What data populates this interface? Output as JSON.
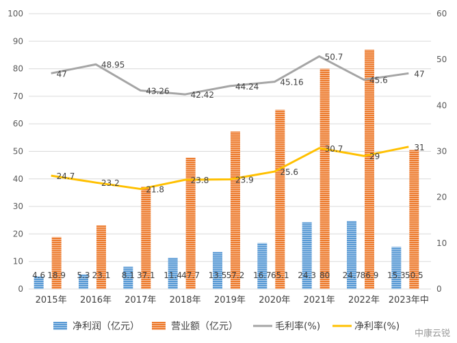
{
  "chart_data": {
    "type": "bar",
    "categories": [
      "2015年",
      "2016年",
      "2017年",
      "2018年",
      "2019年",
      "2020年",
      "2021年",
      "2022年",
      "2023年中"
    ],
    "series": [
      {
        "name": "净利润（亿元）",
        "kind": "bar",
        "axis": "left",
        "color": "#5B9BD5",
        "values": [
          4.6,
          5.3,
          8.1,
          11.4,
          13.5,
          16.7,
          24.3,
          24.7,
          15.3
        ],
        "labels": [
          "4.6",
          "5.3",
          "8.1",
          "11.4",
          "13.5",
          "16.7",
          "24.3",
          "24.7",
          "15.3"
        ]
      },
      {
        "name": "营业额（亿元）",
        "kind": "bar",
        "axis": "left",
        "color": "#ED7D31",
        "values": [
          18.9,
          23.1,
          37.1,
          47.7,
          57.2,
          65.1,
          80,
          86.9,
          50.5
        ],
        "labels": [
          "18.9",
          "23.1",
          "37.1",
          "47.7",
          "57.2",
          "65.1",
          "80",
          "86.9",
          "50.5"
        ]
      },
      {
        "name": "毛利率(%)",
        "kind": "line",
        "axis": "right",
        "color": "#A5A5A5",
        "values": [
          47,
          48.95,
          43.26,
          42.42,
          44.24,
          45.16,
          50.7,
          45.6,
          47
        ],
        "labels": [
          "47",
          "48.95",
          "43.26",
          "42.42",
          "44.24",
          "45.16",
          "50.7",
          "45.6",
          "47"
        ]
      },
      {
        "name": "净利率(%)",
        "kind": "line",
        "axis": "right",
        "color": "#FFC000",
        "values": [
          24.7,
          23.2,
          21.8,
          23.8,
          23.9,
          25.6,
          30.7,
          29,
          31
        ],
        "labels": [
          "24.7",
          "23.2",
          "21.8",
          "23.8",
          "23.9",
          "25.6",
          "30.7",
          "29",
          "31"
        ]
      }
    ],
    "left_axis": {
      "min": 0,
      "max": 100,
      "ticks": [
        "0",
        "10",
        "20",
        "30",
        "40",
        "50",
        "60",
        "70",
        "80",
        "90",
        "100"
      ]
    },
    "right_axis": {
      "min": 0,
      "max": 60,
      "ticks": [
        "0",
        "10",
        "20",
        "30",
        "40",
        "50",
        "60"
      ]
    },
    "legend_labels": [
      "净利润（亿元）",
      "营业额（亿元）",
      "毛利率(%)",
      "净利率(%)"
    ],
    "legend_position": "bottom",
    "grid": true
  },
  "watermark": "中康云锐"
}
